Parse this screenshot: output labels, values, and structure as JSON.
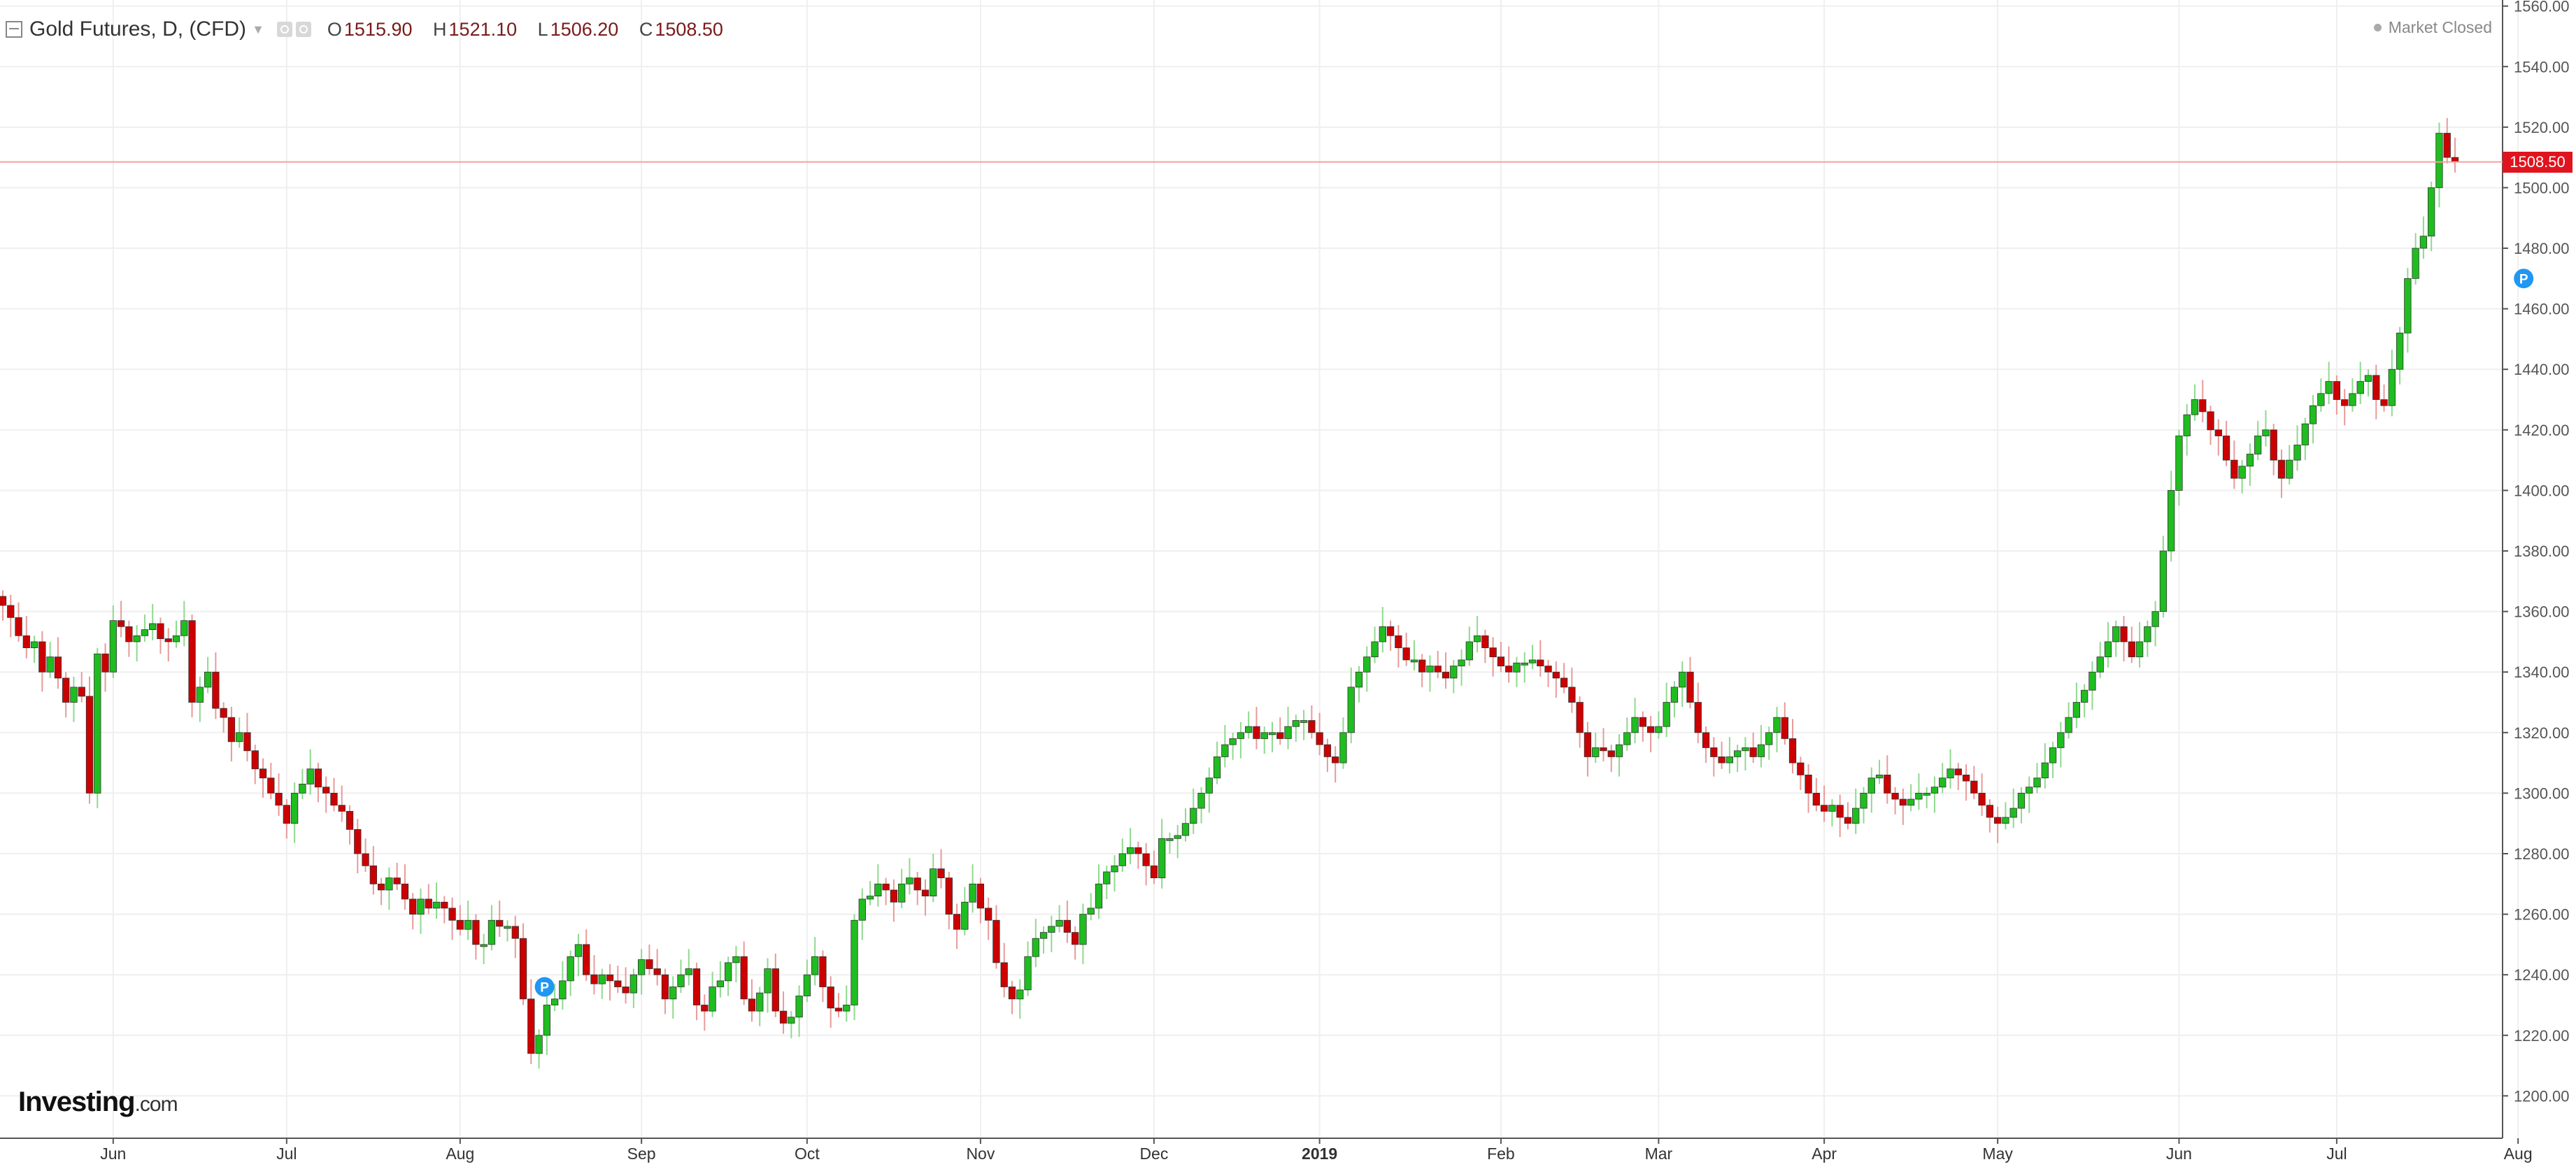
{
  "header": {
    "title": "Gold Futures, D, (CFD)",
    "ohlc": [
      {
        "key": "O",
        "value": "1515.90"
      },
      {
        "key": "H",
        "value": "1521.10"
      },
      {
        "key": "L",
        "value": "1506.20"
      },
      {
        "key": "C",
        "value": "1508.50"
      }
    ]
  },
  "market_status": "Market Closed",
  "logo": {
    "brand": "Investing",
    "suffix": ".com"
  },
  "colors": {
    "up": "#1fbd1f",
    "down": "#cc0000",
    "last_price": "#e0141e",
    "grid": "#efefef",
    "axis": "#555555",
    "marker": "#2196f3"
  },
  "chart_data": {
    "type": "candlestick",
    "title": "Gold Futures, D, (CFD)",
    "last_price": 1508.5,
    "last_price_label": "1508.50",
    "ylim": [
      1186,
      1562
    ],
    "y_ticks": [
      {
        "label": "1200.00",
        "value": 1200
      },
      {
        "label": "1220.00",
        "value": 1220
      },
      {
        "label": "1240.00",
        "value": 1240
      },
      {
        "label": "1260.00",
        "value": 1260
      },
      {
        "label": "1280.00",
        "value": 1280
      },
      {
        "label": "1300.00",
        "value": 1300
      },
      {
        "label": "1320.00",
        "value": 1320
      },
      {
        "label": "1340.00",
        "value": 1340
      },
      {
        "label": "1360.00",
        "value": 1360
      },
      {
        "label": "1380.00",
        "value": 1380
      },
      {
        "label": "1400.00",
        "value": 1400
      },
      {
        "label": "1420.00",
        "value": 1420
      },
      {
        "label": "1440.00",
        "value": 1440
      },
      {
        "label": "1460.00",
        "value": 1460
      },
      {
        "label": "1480.00",
        "value": 1480
      },
      {
        "label": "1500.00",
        "value": 1500
      },
      {
        "label": "1520.00",
        "value": 1520
      },
      {
        "label": "1540.00",
        "value": 1540
      },
      {
        "label": "1560.00",
        "value": 1560
      }
    ],
    "x_ticks": [
      {
        "label": "Jun",
        "index": 14,
        "bold": false
      },
      {
        "label": "Jul",
        "index": 36,
        "bold": false
      },
      {
        "label": "Aug",
        "index": 58,
        "bold": false
      },
      {
        "label": "Sep",
        "index": 81,
        "bold": false
      },
      {
        "label": "Oct",
        "index": 102,
        "bold": false
      },
      {
        "label": "Nov",
        "index": 124,
        "bold": false
      },
      {
        "label": "Dec",
        "index": 146,
        "bold": false
      },
      {
        "label": "2019",
        "index": 167,
        "bold": true
      },
      {
        "label": "Feb",
        "index": 190,
        "bold": false
      },
      {
        "label": "Mar",
        "index": 210,
        "bold": false
      },
      {
        "label": "Apr",
        "index": 231,
        "bold": false
      },
      {
        "label": "May",
        "index": 253,
        "bold": false
      },
      {
        "label": "Jun",
        "index": 276,
        "bold": false
      },
      {
        "label": "Jul",
        "index": 296,
        "bold": false
      },
      {
        "label": "Aug",
        "index": 319,
        "bold": false
      }
    ],
    "markers": [
      {
        "label": "P",
        "index": 68,
        "price": 1236
      },
      {
        "label": "P",
        "index": 319,
        "price": 1470
      }
    ],
    "closes": [
      1362,
      1358,
      1352,
      1348,
      1350,
      1340,
      1345,
      1338,
      1330,
      1335,
      1332,
      1300,
      1346,
      1340,
      1357,
      1355,
      1350,
      1352,
      1354,
      1356,
      1351,
      1350,
      1352,
      1357,
      1330,
      1335,
      1340,
      1328,
      1325,
      1317,
      1320,
      1314,
      1308,
      1305,
      1300,
      1296,
      1290,
      1300,
      1303,
      1308,
      1302,
      1300,
      1296,
      1294,
      1288,
      1280,
      1276,
      1270,
      1268,
      1272,
      1270,
      1265,
      1260,
      1265,
      1262,
      1264,
      1262,
      1258,
      1255,
      1258,
      1250,
      1250,
      1258,
      1256,
      1256,
      1252,
      1232,
      1214,
      1220,
      1230,
      1232,
      1238,
      1246,
      1250,
      1240,
      1237,
      1240,
      1238,
      1236,
      1234,
      1240,
      1245,
      1242,
      1240,
      1232,
      1236,
      1240,
      1242,
      1230,
      1228,
      1236,
      1238,
      1244,
      1246,
      1232,
      1228,
      1234,
      1242,
      1228,
      1224,
      1226,
      1233,
      1240,
      1246,
      1236,
      1229,
      1228,
      1230,
      1258,
      1265,
      1266,
      1270,
      1268,
      1264,
      1270,
      1272,
      1268,
      1266,
      1275,
      1272,
      1260,
      1255,
      1264,
      1270,
      1262,
      1258,
      1244,
      1236,
      1232,
      1235,
      1246,
      1252,
      1254,
      1256,
      1258,
      1254,
      1250,
      1260,
      1262,
      1270,
      1274,
      1276,
      1280,
      1282,
      1280,
      1276,
      1272,
      1285,
      1285,
      1286,
      1290,
      1295,
      1300,
      1305,
      1312,
      1316,
      1318,
      1320,
      1322,
      1318,
      1320,
      1320,
      1318,
      1322,
      1324,
      1324,
      1320,
      1316,
      1312,
      1310,
      1320,
      1335,
      1340,
      1345,
      1350,
      1355,
      1352,
      1348,
      1344,
      1344,
      1340,
      1342,
      1340,
      1338,
      1342,
      1344,
      1350,
      1352,
      1348,
      1345,
      1342,
      1340,
      1343,
      1343,
      1344,
      1342,
      1340,
      1338,
      1335,
      1330,
      1320,
      1312,
      1315,
      1314,
      1312,
      1316,
      1320,
      1325,
      1322,
      1320,
      1322,
      1330,
      1335,
      1340,
      1330,
      1320,
      1315,
      1312,
      1310,
      1312,
      1314,
      1315,
      1312,
      1316,
      1320,
      1325,
      1318,
      1310,
      1306,
      1300,
      1296,
      1294,
      1296,
      1292,
      1290,
      1295,
      1300,
      1305,
      1306,
      1300,
      1298,
      1296,
      1298,
      1300,
      1300,
      1302,
      1305,
      1308,
      1306,
      1304,
      1300,
      1296,
      1292,
      1290,
      1292,
      1295,
      1300,
      1302,
      1305,
      1310,
      1315,
      1320,
      1325,
      1330,
      1334,
      1340,
      1345,
      1350,
      1355,
      1350,
      1345,
      1350,
      1355,
      1360,
      1380,
      1400,
      1418,
      1425,
      1430,
      1426,
      1420,
      1418,
      1410,
      1404,
      1408,
      1412,
      1418,
      1420,
      1410,
      1404,
      1410,
      1415,
      1422,
      1428,
      1432,
      1436,
      1430,
      1428,
      1432,
      1436,
      1438,
      1430,
      1428,
      1440,
      1452,
      1470,
      1480,
      1484,
      1500,
      1518,
      1510,
      1508.5
    ]
  }
}
